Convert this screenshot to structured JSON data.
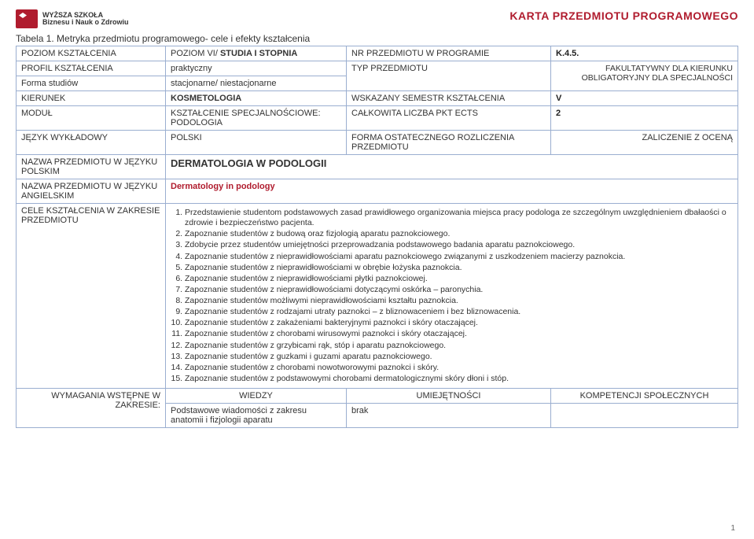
{
  "header": {
    "logo_line1": "WYŻSZA SZKOŁA",
    "logo_line2": "Biznesu i Nauk o Zdrowiu",
    "karta_title": "KARTA PRZEDMIOTU PROGRAMOWEGO"
  },
  "caption": "Tabela 1. Metryka przedmiotu programowego- cele i efekty kształcenia",
  "rows": {
    "poziom_ksztalcenia": {
      "label": "POZIOM KSZTAŁCENIA",
      "value": "POZIOM VI/ STUDIA I STOPNIA",
      "right_label": "NR PRZEDMIOTU W PROGRAMIE",
      "right_value": "K.4.5."
    },
    "profil": {
      "label": "PROFIL KSZTAŁCENIA",
      "value": "praktyczny",
      "right_label": "TYP PRZEDMIOTU",
      "right_value": "FAKULTATYWNY DLA KIERUNKU\nOBLIGATORYJNY DLA SPECJALNOŚCI"
    },
    "forma": {
      "label": "Forma studiów",
      "value": "stacjonarne/ niestacjonarne"
    },
    "kierunek": {
      "label": "KIERUNEK",
      "value": "KOSMETOLOGIA",
      "right_label": "WSKAZANY SEMESTR KSZTAŁCENIA",
      "right_value": "V"
    },
    "modul": {
      "label": "MODUŁ",
      "value": "KSZTAŁCENIE SPECJALNOŚCIOWE: PODOLOGIA",
      "right_label": "CAŁKOWITA LICZBA PKT ECTS",
      "right_value": "2"
    },
    "jezyk": {
      "label": "JĘZYK WYKŁADOWY",
      "value": "POLSKI",
      "right_label": "FORMA OSTATECZNEGO ROZLICZENIA PRZEDMIOTU",
      "right_value": "ZALICZENIE Z OCENĄ"
    },
    "nazwa_pl": {
      "label": "NAZWA PRZEDMIOTU W JĘZYKU POLSKIM",
      "value": "DERMATOLOGIA W PODOLOGII"
    },
    "nazwa_en": {
      "label": "NAZWA PRZEDMIOTU W JĘZYKU ANGIELSKIM",
      "value": "Dermatology in podology"
    },
    "cele": {
      "label": "CELE KSZTAŁCENIA W ZAKRESIE PRZEDMIOTU"
    },
    "wymagania": {
      "label": "WYMAGANIA WSTĘPNE W ZAKRESIE:"
    }
  },
  "goals": [
    "Przedstawienie studentom podstawowych zasad prawidłowego organizowania miejsca pracy podologa ze szczególnym uwzględnieniem dbałaości o zdrowie i bezpieczeństwo pacjenta.",
    "Zapoznanie studentów z budową  oraz fizjologią  aparatu paznokciowego.",
    "Zdobycie przez studentów umiejętności przeprowadzania podstawowego badania aparatu paznokciowego.",
    "Zapoznanie studentów z nieprawidłowościami aparatu paznokciowego związanymi z uszkodzeniem macierzy paznokcia.",
    "Zapoznanie studentów z nieprawidłowościami w obrębie łożyska paznokcia.",
    "Zapoznanie studentów z nieprawidłowościami płytki paznokciowej.",
    "Zapoznanie studentów z nieprawidłowościami dotyczącymi oskórka – paronychia.",
    "Zapoznanie studentów możliwymi nieprawidłowościami kształtu paznokcia.",
    "Zapoznanie studentów z rodzajami utraty paznokci – z bliznowaceniem i bez bliznowacenia.",
    "Zapoznanie studentów z zakażeniami bakteryjnymi paznokci i skóry otaczającej.",
    "Zapoznanie studentów z chorobami wirusowymi paznokci i skóry otaczającej.",
    "Zapoznanie studentów z grzybicami rąk, stóp i aparatu paznokciowego.",
    "Zapoznanie studentów z guzkami i guzami aparatu paznokciowego.",
    "Zapoznanie studentów z chorobami nowotworowymi paznokci i skóry.",
    "Zapoznanie studentów z podstawowymi chorobami dermatologicznymi skóry dłoni i stóp."
  ],
  "prereq": {
    "headers": [
      "WIEDZY",
      "UMIEJĘTNOŚCI",
      "KOMPETENCJI  SPOŁECZNYCH"
    ],
    "row": [
      "Podstawowe wiadomości z zakresu anatomii i fizjologii  aparatu",
      "brak",
      ""
    ]
  },
  "page_number": "1"
}
